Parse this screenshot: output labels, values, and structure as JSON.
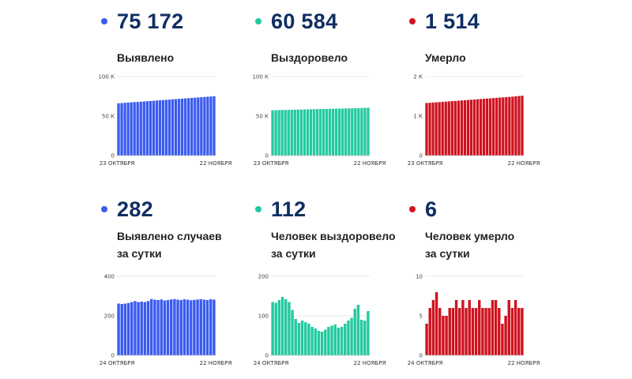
{
  "panels": [
    {
      "id": "p1",
      "color": "#3a5bf0",
      "big": "75 172",
      "label_line1": "Выявлено",
      "label_line2": ""
    },
    {
      "id": "p2",
      "color": "#23c9a0",
      "big": "60 584",
      "label_line1": "Выздоровело",
      "label_line2": ""
    },
    {
      "id": "p3",
      "color": "#d0121f",
      "big": "1 514",
      "label_line1": "Умерло",
      "label_line2": ""
    },
    {
      "id": "p4",
      "color": "#3a5bf0",
      "big": "282",
      "label_line1": "Выявлено случаев",
      "label_line2": "за сутки"
    },
    {
      "id": "p5",
      "color": "#23c9a0",
      "big": "112",
      "label_line1": "Человек выздоровело",
      "label_line2": "за сутки"
    },
    {
      "id": "p6",
      "color": "#d0121f",
      "big": "6",
      "label_line1": "Человек умерло",
      "label_line2": "за сутки"
    }
  ],
  "chart_data": [
    {
      "type": "bar",
      "title": "Выявлено",
      "x_start": "23 ОКТЯБРЯ",
      "x_end": "22 НОЯБРЯ",
      "ylim": [
        0,
        100000
      ],
      "ytick_labels": [
        "0",
        "50 К",
        "100 К"
      ],
      "grid": true,
      "color": "#3a5bf0",
      "values": [
        66200,
        66500,
        66800,
        67100,
        67400,
        67700,
        67900,
        68200,
        68500,
        68800,
        69100,
        69400,
        69700,
        70000,
        70300,
        70600,
        70900,
        71200,
        71500,
        71800,
        72100,
        72400,
        72700,
        73000,
        73300,
        73600,
        73900,
        74200,
        74500,
        74800,
        75172
      ]
    },
    {
      "type": "bar",
      "title": "Выздоровело",
      "x_start": "23 ОКТЯБРЯ",
      "x_end": "22 НОЯБРЯ",
      "ylim": [
        0,
        100000
      ],
      "ytick_labels": [
        "0",
        "50 К",
        "100 К"
      ],
      "grid": true,
      "color": "#23c9a0",
      "values": [
        57400,
        57500,
        57600,
        57700,
        57800,
        57900,
        58000,
        58100,
        58200,
        58300,
        58400,
        58500,
        58600,
        58700,
        58800,
        58900,
        59000,
        59100,
        59200,
        59300,
        59400,
        59500,
        59600,
        59700,
        59800,
        59900,
        60000,
        60100,
        60250,
        60450,
        60584
      ]
    },
    {
      "type": "bar",
      "title": "Умерло",
      "x_start": "23 ОКТЯБРЯ",
      "x_end": "22 НОЯБРЯ",
      "ylim": [
        0,
        2000
      ],
      "ytick_labels": [
        "0",
        "1 К",
        "2 К"
      ],
      "grid": true,
      "color": "#d0121f",
      "values": [
        1330,
        1336,
        1342,
        1348,
        1354,
        1360,
        1366,
        1372,
        1378,
        1384,
        1390,
        1396,
        1402,
        1408,
        1414,
        1420,
        1426,
        1432,
        1438,
        1444,
        1450,
        1456,
        1462,
        1468,
        1474,
        1480,
        1486,
        1492,
        1500,
        1508,
        1514
      ]
    },
    {
      "type": "bar",
      "title": "Выявлено случаев за сутки",
      "x_start": "24 ОКТЯБРЯ",
      "x_end": "22 НОЯБРЯ",
      "ylim": [
        0,
        400
      ],
      "ytick_labels": [
        "0",
        "200",
        "400"
      ],
      "grid": true,
      "color": "#3a5bf0",
      "values": [
        262,
        260,
        262,
        265,
        270,
        275,
        270,
        272,
        270,
        275,
        285,
        282,
        280,
        283,
        278,
        280,
        283,
        285,
        282,
        280,
        284,
        282,
        279,
        281,
        283,
        284,
        282,
        280,
        284,
        282
      ]
    },
    {
      "type": "bar",
      "title": "Человек выздоровело за сутки",
      "x_start": "24 ОКТЯБРЯ",
      "x_end": "22 НОЯБРЯ",
      "ylim": [
        0,
        200
      ],
      "ytick_labels": [
        "0",
        "100",
        "200"
      ],
      "grid": true,
      "color": "#23c9a0",
      "values": [
        135,
        133,
        140,
        148,
        142,
        135,
        115,
        92,
        82,
        88,
        84,
        80,
        72,
        68,
        62,
        60,
        65,
        72,
        75,
        78,
        70,
        72,
        80,
        88,
        95,
        118,
        128,
        90,
        88,
        112
      ]
    },
    {
      "type": "bar",
      "title": "Человек умерло за сутки",
      "x_start": "24 ОКТЯБРЯ",
      "x_end": "22 НОЯБРЯ",
      "ylim": [
        0,
        10
      ],
      "ytick_labels": [
        "0",
        "5",
        "10"
      ],
      "grid": true,
      "color": "#d0121f",
      "values": [
        4,
        6,
        7,
        8,
        6,
        5,
        5,
        6,
        6,
        7,
        6,
        7,
        6,
        7,
        6,
        6,
        7,
        6,
        6,
        6,
        7,
        7,
        6,
        4,
        5,
        7,
        6,
        7,
        6,
        6
      ]
    }
  ]
}
